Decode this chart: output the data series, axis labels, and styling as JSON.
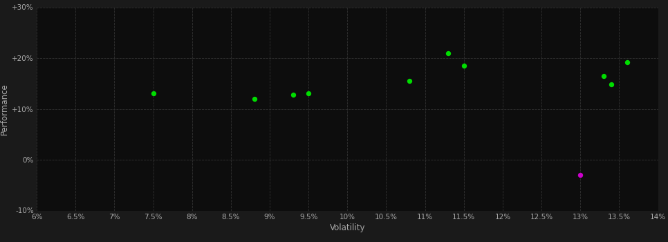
{
  "background_color": "#1a1a1a",
  "plot_bg_color": "#0d0d0d",
  "grid_color": "#333333",
  "grid_style": "--",
  "xlabel": "Volatility",
  "ylabel": "Performance",
  "xlim": [
    0.06,
    0.14
  ],
  "ylim": [
    -0.1,
    0.3
  ],
  "xticks": [
    0.06,
    0.065,
    0.07,
    0.075,
    0.08,
    0.085,
    0.09,
    0.095,
    0.1,
    0.105,
    0.11,
    0.115,
    0.12,
    0.125,
    0.13,
    0.135,
    0.14
  ],
  "yticks": [
    -0.1,
    0.0,
    0.1,
    0.2,
    0.3
  ],
  "ytick_labels": [
    "-10%",
    "0%",
    "+10%",
    "+20%",
    "+30%"
  ],
  "xtick_labels": [
    "6%",
    "6.5%",
    "7%",
    "7.5%",
    "8%",
    "8.5%",
    "9%",
    "9.5%",
    "10%",
    "10.5%",
    "11%",
    "11.5%",
    "12%",
    "12.5%",
    "13%",
    "13.5%",
    "14%"
  ],
  "green_points": [
    [
      0.075,
      0.13
    ],
    [
      0.088,
      0.12
    ],
    [
      0.093,
      0.128
    ],
    [
      0.095,
      0.13
    ],
    [
      0.108,
      0.155
    ],
    [
      0.113,
      0.21
    ],
    [
      0.115,
      0.185
    ],
    [
      0.133,
      0.165
    ],
    [
      0.134,
      0.148
    ],
    [
      0.136,
      0.192
    ]
  ],
  "magenta_points": [
    [
      0.13,
      -0.03
    ]
  ],
  "point_size": 28,
  "green_color": "#00dd00",
  "magenta_color": "#cc00cc",
  "tick_color": "#aaaaaa",
  "label_color": "#aaaaaa",
  "tick_fontsize": 7.5,
  "label_fontsize": 8.5
}
